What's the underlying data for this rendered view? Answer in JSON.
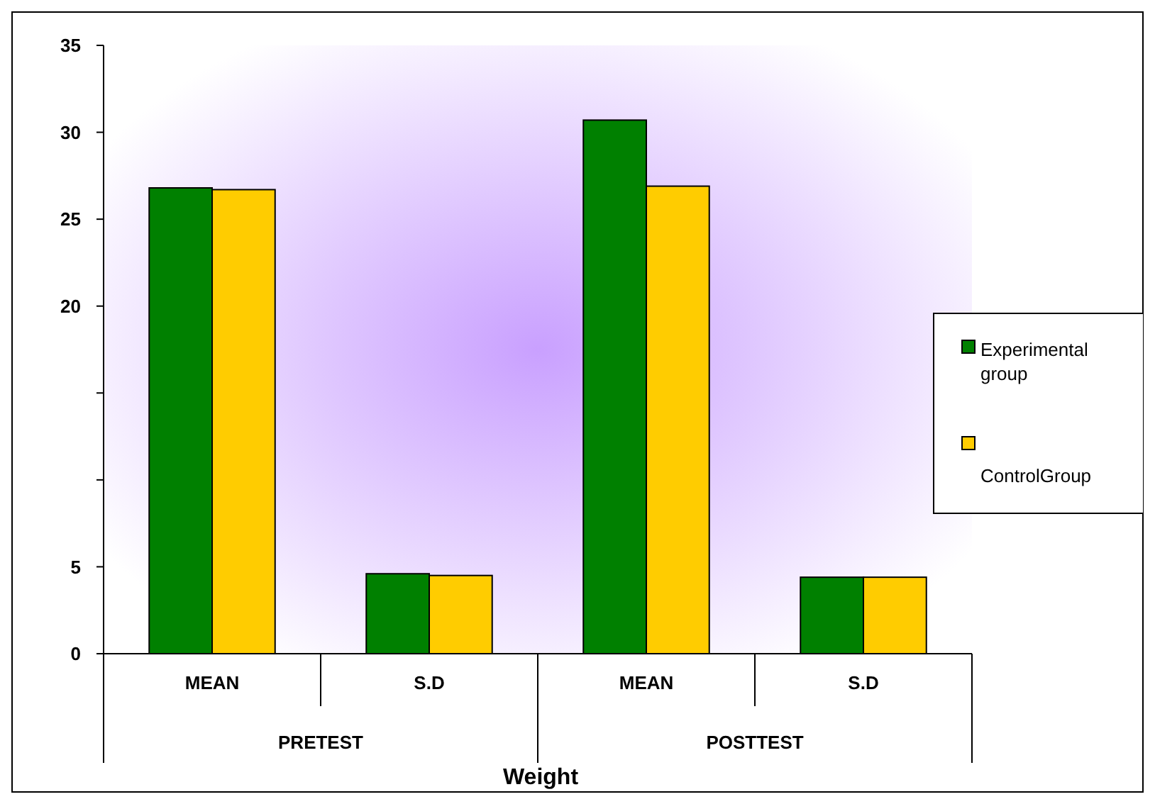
{
  "chart_data": {
    "type": "bar",
    "xlabel": "Weight",
    "categories": [
      "MEAN",
      "S.D",
      "MEAN",
      "S.D"
    ],
    "series": [
      {
        "name": "Experimental group",
        "color": "#008000",
        "values": [
          26.8,
          4.6,
          30.7,
          4.4
        ]
      },
      {
        "name": "ControlGroup",
        "color": "#ffcc00",
        "values": [
          26.7,
          4.5,
          26.9,
          4.4
        ]
      }
    ],
    "annotations": [
      "PRETEST",
      "POSTTEST"
    ],
    "ylim": [
      0,
      35
    ],
    "yticks": [
      0,
      5,
      {
        "value": 10,
        "label": null
      },
      {
        "value": 15,
        "label": null
      },
      20,
      25,
      30,
      35
    ],
    "grid": false,
    "legend": "right"
  }
}
